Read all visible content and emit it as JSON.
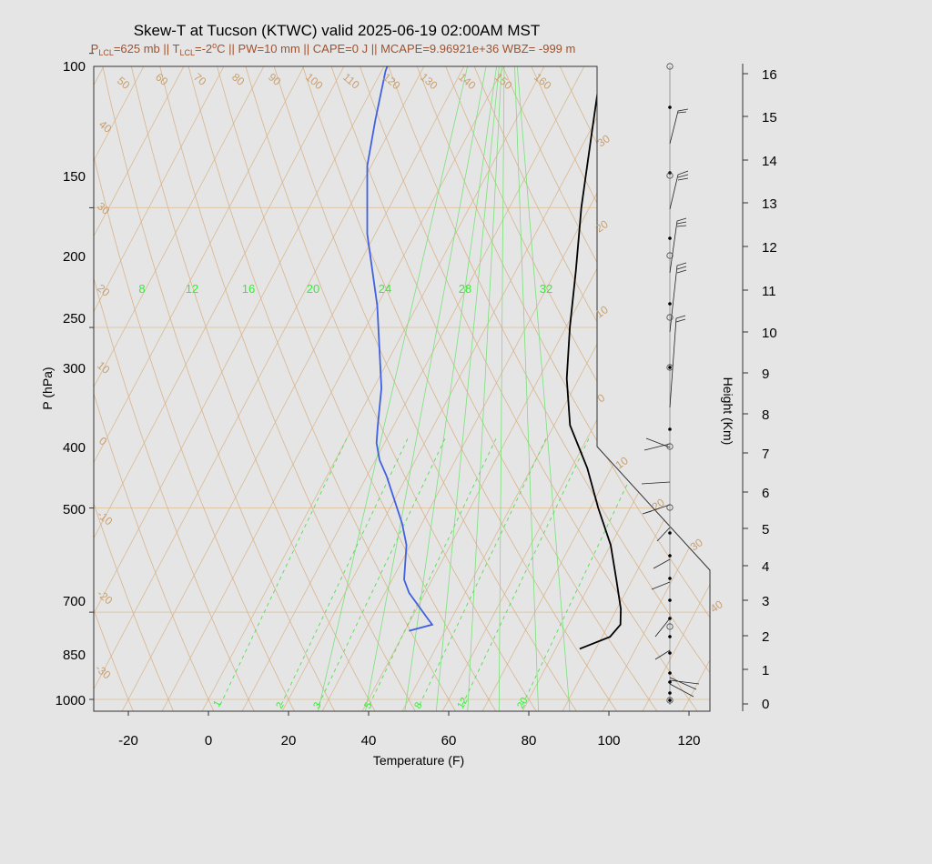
{
  "chart_data": {
    "type": "line",
    "title": "Skew-T at Tucson (KTWC) valid 2025-06-19 02:00AM MST",
    "subtitle": {
      "lcl_p_label": "P",
      "lcl_p_sub": "LCL",
      "lcl_p_value": "=625 mb || ",
      "lcl_t_label": "T",
      "lcl_t_sub": "LCL",
      "lcl_t_value": "=-2",
      "lcl_t_sup": "o",
      "rest": "C || PW=10 mm || CAPE=0 J || MCAPE=9.96921e+36 WBZ= -999 m"
    },
    "xlabel": "Temperature (F)",
    "ylabel": "P (hPa)",
    "y2label": "Height (Km)",
    "x_ticks": [
      -20,
      0,
      20,
      40,
      60,
      80,
      100,
      120
    ],
    "p_ticks": [
      100,
      150,
      200,
      250,
      300,
      400,
      500,
      700,
      850,
      1000
    ],
    "height_ticks": [
      0,
      1,
      2,
      3,
      4,
      5,
      6,
      7,
      8,
      9,
      10,
      11,
      12,
      13,
      14,
      15,
      16
    ],
    "dry_adiabat_labels": [
      "50",
      "60",
      "70",
      "80",
      "90",
      "100",
      "110",
      "120",
      "130",
      "140",
      "150",
      "160",
      "40",
      "30",
      "20",
      "10",
      "0",
      "-10",
      "-20",
      "-30"
    ],
    "isotherm_labels": [
      "30",
      "20",
      "10",
      "0",
      "10",
      "20",
      "30",
      "40"
    ],
    "mixing_ratio_top_labels": [
      "8",
      "12",
      "16",
      "20",
      "24",
      "28",
      "32"
    ],
    "mixing_ratio_bottom_labels": [
      "1",
      "2",
      "3",
      "5",
      "8",
      "12",
      "20"
    ],
    "series": [
      {
        "name": "",
        "color": "#000000",
        "points": [
          [
            86,
            910
          ],
          [
            92,
            890
          ],
          [
            93,
            870
          ],
          [
            91,
            845
          ],
          [
            86,
            800
          ],
          [
            80,
            750
          ],
          [
            72,
            700
          ],
          [
            64,
            650
          ],
          [
            54,
            600
          ],
          [
            47,
            550
          ],
          [
            41,
            500
          ],
          [
            35,
            450
          ],
          [
            28,
            400
          ],
          [
            21,
            350
          ],
          [
            13,
            300
          ],
          [
            5,
            250
          ],
          [
            -2,
            230
          ],
          [
            -9,
            200
          ],
          [
            -15,
            180
          ],
          [
            -20,
            160
          ],
          [
            -16,
            140
          ],
          [
            -5,
            120
          ],
          [
            10,
            100
          ]
        ]
      },
      {
        "name": "",
        "color": "#4060e0",
        "points": [
          [
            41,
            880
          ],
          [
            46,
            870
          ],
          [
            44,
            860
          ],
          [
            36,
            820
          ],
          [
            33,
            800
          ],
          [
            29,
            750
          ],
          [
            25,
            720
          ],
          [
            15,
            660
          ],
          [
            11,
            640
          ],
          [
            8,
            620
          ],
          [
            6,
            600
          ],
          [
            2,
            560
          ],
          [
            -10,
            480
          ],
          [
            -22,
            420
          ],
          [
            -31,
            370
          ],
          [
            -35,
            340
          ],
          [
            -39,
            310
          ],
          [
            -41,
            280
          ],
          [
            -39,
            240
          ],
          [
            -40,
            210
          ],
          [
            -51,
            170
          ],
          [
            -60,
            140
          ],
          [
            -58,
            125
          ],
          [
            -45,
            100
          ]
        ]
      }
    ],
    "wind_staff_x_f": 115
  }
}
